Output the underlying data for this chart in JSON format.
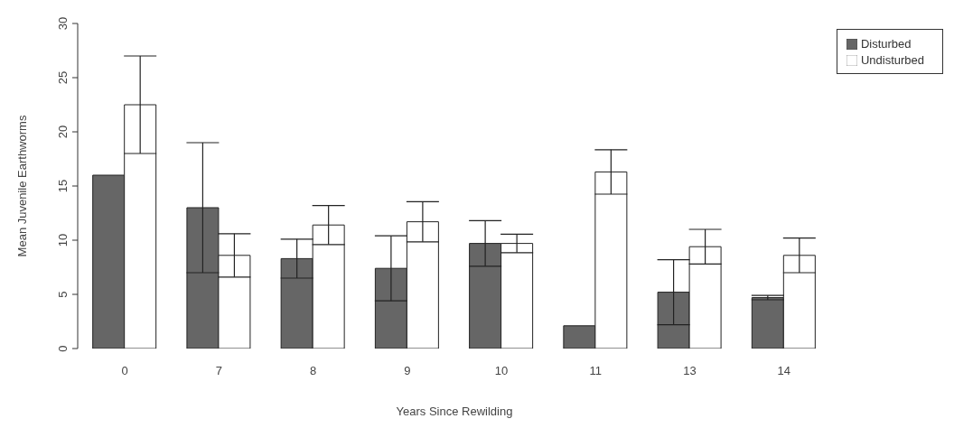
{
  "chart_data": {
    "type": "bar",
    "xlabel": "Years Since Rewilding",
    "ylabel": "Mean Juvenile Earthworms",
    "categories": [
      "0",
      "7",
      "8",
      "9",
      "10",
      "11",
      "13",
      "14"
    ],
    "series": [
      {
        "name": "Disturbed",
        "color": "#666666",
        "values": [
          16.0,
          13.0,
          8.3,
          7.4,
          9.7,
          2.1,
          5.2,
          4.7
        ],
        "errors": [
          null,
          6.0,
          1.8,
          3.0,
          2.1,
          null,
          3.0,
          0.2
        ]
      },
      {
        "name": "Undisturbed",
        "color": "#ffffff",
        "values": [
          22.5,
          8.6,
          11.4,
          11.7,
          9.7,
          16.3,
          9.4,
          8.6
        ],
        "errors": [
          4.5,
          2.0,
          1.8,
          1.85,
          0.85,
          2.05,
          1.6,
          1.6
        ]
      }
    ],
    "ylim": [
      0,
      30
    ],
    "yticks": [
      0,
      5,
      10,
      15,
      20,
      25,
      30
    ],
    "grid": false,
    "legend": "top right"
  }
}
